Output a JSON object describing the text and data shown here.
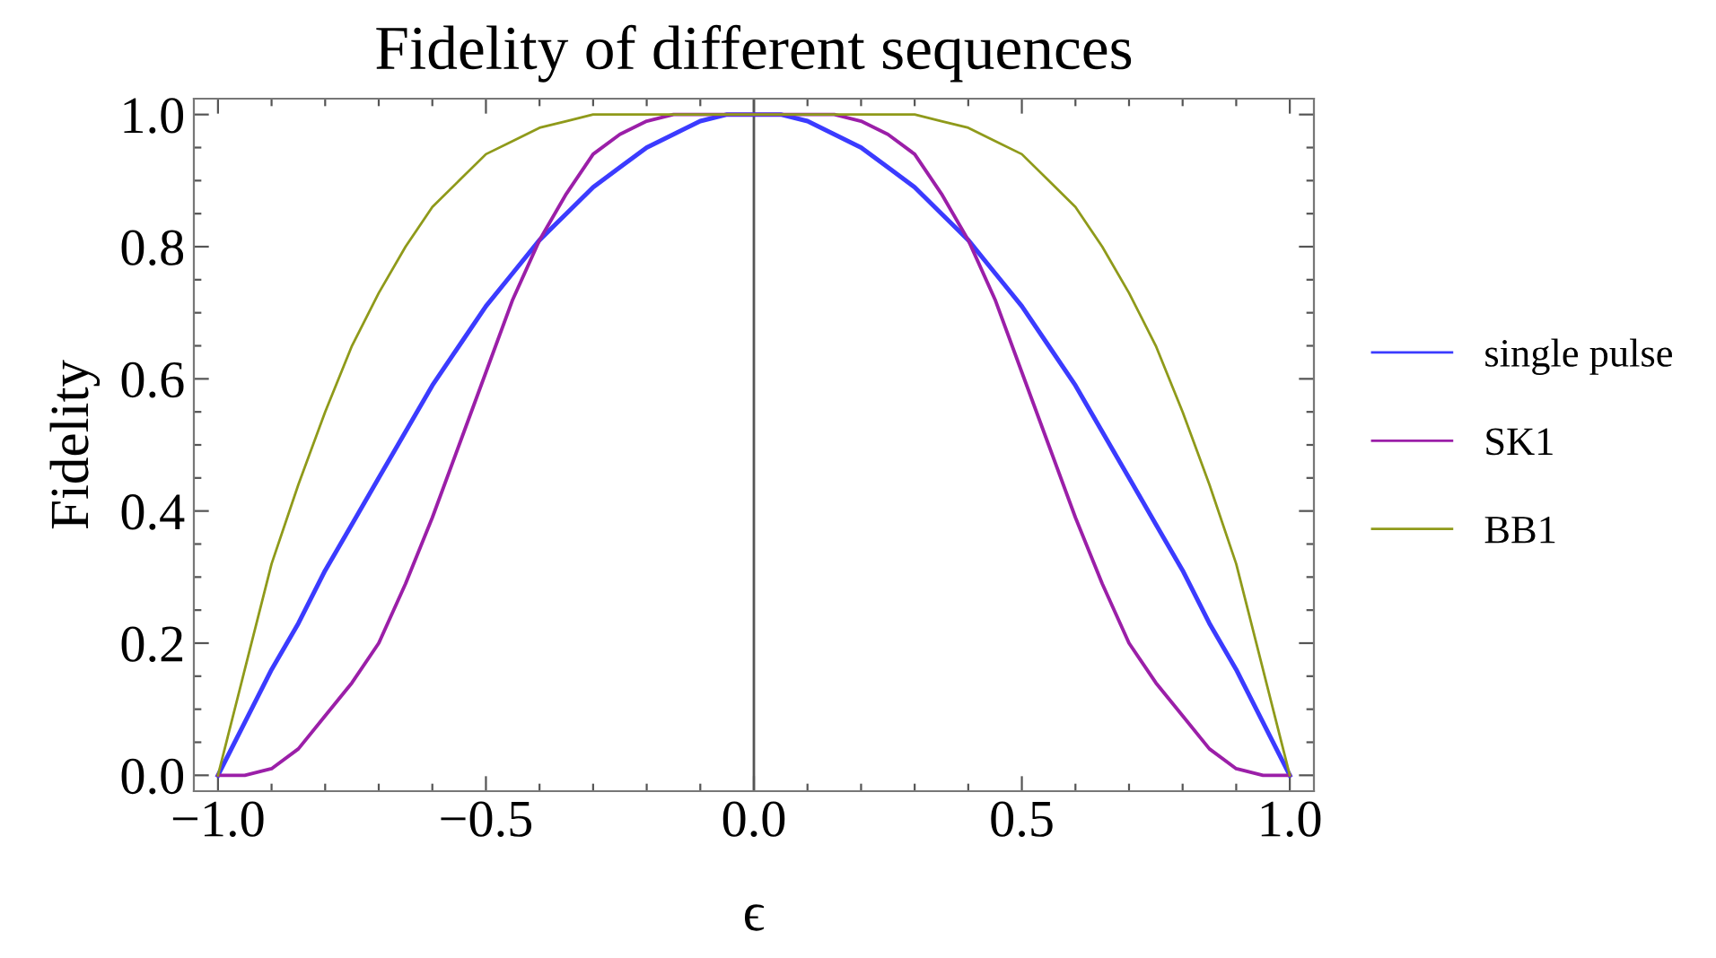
{
  "chart_data": {
    "type": "line",
    "title": "Fidelity of different sequences",
    "xlabel": "ϵ",
    "ylabel": "Fidelity",
    "x": [
      -1,
      -0.95,
      -0.9,
      -0.85,
      -0.8,
      -0.75,
      -0.7,
      -0.65,
      -0.6,
      -0.55,
      -0.5,
      -0.45,
      -0.4,
      -0.35,
      -0.3,
      -0.25,
      -0.2,
      -0.15,
      -0.1,
      -0.05,
      0,
      0.05,
      0.1,
      0.15,
      0.2,
      0.25,
      0.3,
      0.35,
      0.4,
      0.45,
      0.5,
      0.55,
      0.6,
      0.65,
      0.7,
      0.75,
      0.8,
      0.85,
      0.9,
      0.95,
      1
    ],
    "series": [
      {
        "name": "single pulse",
        "color": "#3b3bff",
        "values": [
          0,
          0.08,
          0.16,
          0.23,
          0.31,
          0.38,
          0.45,
          0.52,
          0.59,
          0.65,
          0.71,
          0.76,
          0.81,
          0.85,
          0.89,
          0.92,
          0.95,
          0.97,
          0.99,
          1,
          1,
          1,
          0.99,
          0.97,
          0.95,
          0.92,
          0.89,
          0.85,
          0.81,
          0.76,
          0.71,
          0.65,
          0.59,
          0.52,
          0.45,
          0.38,
          0.31,
          0.23,
          0.16,
          0.08,
          0
        ]
      },
      {
        "name": "SK1",
        "color": "#9b1fa8",
        "values": [
          0,
          0,
          0.01,
          0.04,
          0.09,
          0.14,
          0.2,
          0.29,
          0.39,
          0.5,
          0.61,
          0.72,
          0.81,
          0.88,
          0.94,
          0.97,
          0.99,
          1,
          1,
          1,
          1,
          1,
          1,
          1,
          0.99,
          0.97,
          0.94,
          0.88,
          0.81,
          0.72,
          0.61,
          0.5,
          0.39,
          0.29,
          0.2,
          0.14,
          0.09,
          0.04,
          0.01,
          0,
          0
        ]
      },
      {
        "name": "BB1",
        "color": "#8f9a1a",
        "values": [
          0,
          0.16,
          0.32,
          0.44,
          0.55,
          0.65,
          0.73,
          0.8,
          0.86,
          0.9,
          0.94,
          0.96,
          0.98,
          0.99,
          1,
          1,
          1,
          1,
          1,
          1,
          1,
          1,
          1,
          1,
          1,
          1,
          1,
          0.99,
          0.98,
          0.96,
          0.94,
          0.9,
          0.86,
          0.8,
          0.73,
          0.65,
          0.55,
          0.44,
          0.32,
          0.16,
          0
        ]
      }
    ],
    "xlim": [
      -1.045,
      1.045
    ],
    "ylim": [
      -0.024,
      1.024
    ],
    "xticks": [
      {
        "value": -1,
        "label": "−1.0"
      },
      {
        "value": -0.9,
        "label": null
      },
      {
        "value": -0.8,
        "label": null
      },
      {
        "value": -0.7,
        "label": null
      },
      {
        "value": -0.6,
        "label": null
      },
      {
        "value": -0.5,
        "label": "−0.5"
      },
      {
        "value": -0.4,
        "label": null
      },
      {
        "value": -0.3,
        "label": null
      },
      {
        "value": -0.2,
        "label": null
      },
      {
        "value": -0.1,
        "label": null
      },
      {
        "value": 0,
        "label": "0.0"
      },
      {
        "value": 0.1,
        "label": null
      },
      {
        "value": 0.2,
        "label": null
      },
      {
        "value": 0.3,
        "label": null
      },
      {
        "value": 0.4,
        "label": null
      },
      {
        "value": 0.5,
        "label": "0.5"
      },
      {
        "value": 0.6,
        "label": null
      },
      {
        "value": 0.7,
        "label": null
      },
      {
        "value": 0.8,
        "label": null
      },
      {
        "value": 0.9,
        "label": null
      },
      {
        "value": 1,
        "label": "1.0"
      }
    ],
    "yticks": [
      {
        "value": 0,
        "label": "0.0"
      },
      {
        "value": 0.05,
        "label": null
      },
      {
        "value": 0.1,
        "label": null
      },
      {
        "value": 0.15,
        "label": null
      },
      {
        "value": 0.2,
        "label": "0.2"
      },
      {
        "value": 0.25,
        "label": null
      },
      {
        "value": 0.3,
        "label": null
      },
      {
        "value": 0.35,
        "label": null
      },
      {
        "value": 0.4,
        "label": "0.4"
      },
      {
        "value": 0.45,
        "label": null
      },
      {
        "value": 0.5,
        "label": null
      },
      {
        "value": 0.55,
        "label": null
      },
      {
        "value": 0.6,
        "label": "0.6"
      },
      {
        "value": 0.65,
        "label": null
      },
      {
        "value": 0.7,
        "label": null
      },
      {
        "value": 0.75,
        "label": null
      },
      {
        "value": 0.8,
        "label": "0.8"
      },
      {
        "value": 0.85,
        "label": null
      },
      {
        "value": 0.9,
        "label": null
      },
      {
        "value": 0.95,
        "label": null
      },
      {
        "value": 1,
        "label": "1.0"
      }
    ],
    "ref_lines": [
      {
        "axis": "x",
        "value": 0,
        "color": "#555555"
      }
    ],
    "grid": false,
    "legend": "right",
    "marker": "none",
    "line_style": "solid"
  }
}
